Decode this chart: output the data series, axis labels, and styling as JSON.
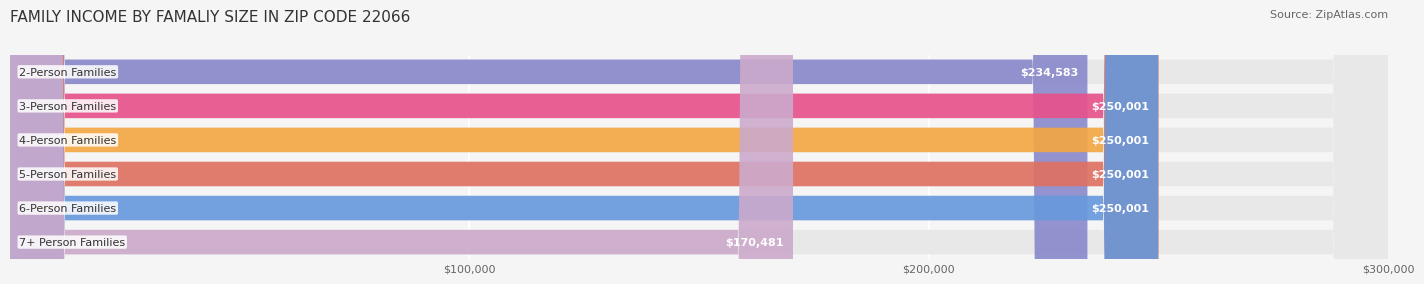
{
  "title": "FAMILY INCOME BY FAMALIY SIZE IN ZIP CODE 22066",
  "source": "Source: ZipAtlas.com",
  "categories": [
    "2-Person Families",
    "3-Person Families",
    "4-Person Families",
    "5-Person Families",
    "6-Person Families",
    "7+ Person Families"
  ],
  "values": [
    234583,
    250001,
    250001,
    250001,
    250001,
    170481
  ],
  "bar_colors": [
    "#8888cc",
    "#e8508a",
    "#f5a742",
    "#e07060",
    "#6699dd",
    "#ccaacc"
  ],
  "bar_labels": [
    "$234,583",
    "$250,001",
    "$250,001",
    "$250,001",
    "$250,001",
    "$170,481"
  ],
  "xlim": [
    0,
    300000
  ],
  "xticks": [
    0,
    100000,
    200000,
    300000
  ],
  "xtick_labels": [
    "",
    "$100,000",
    "$200,000",
    "$300,000"
  ],
  "background_color": "#f5f5f5",
  "bar_bg_color": "#e8e8e8",
  "title_fontsize": 11,
  "source_fontsize": 8,
  "label_fontsize": 8,
  "category_fontsize": 8
}
